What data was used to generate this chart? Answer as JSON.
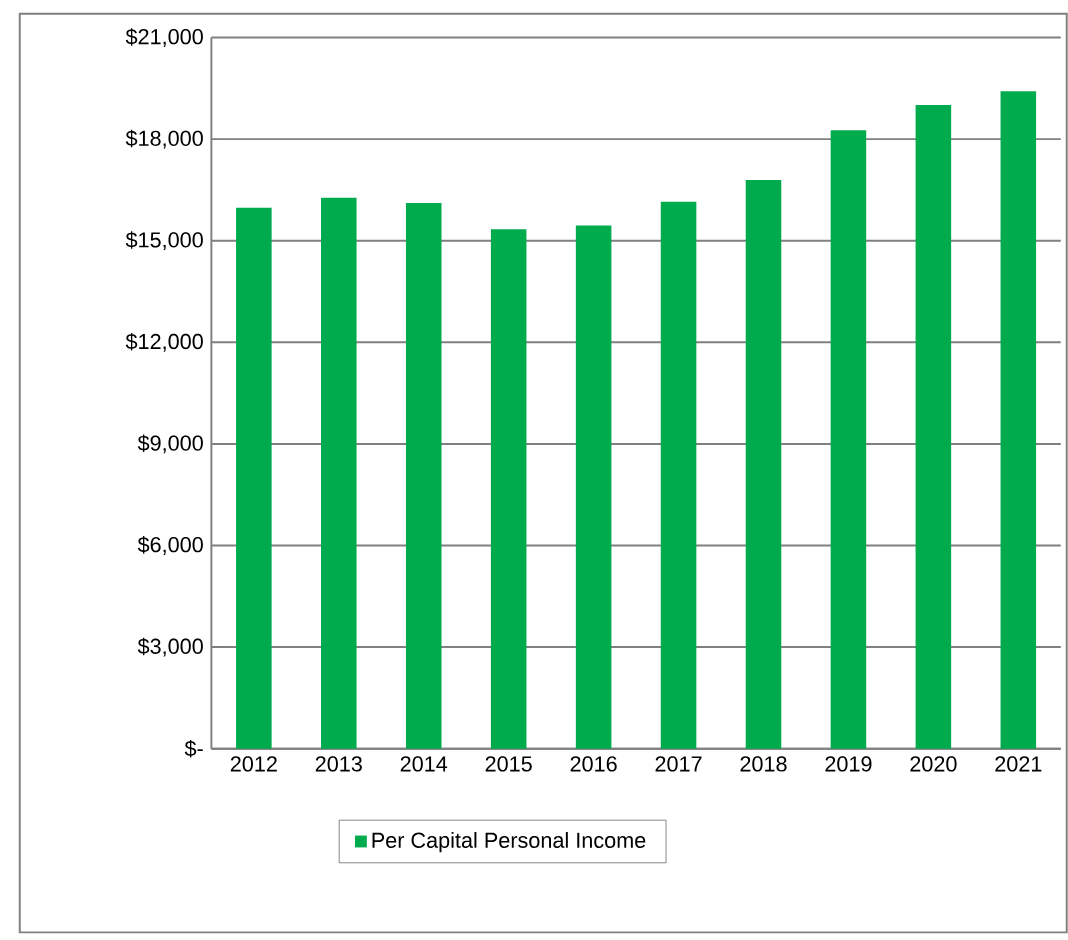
{
  "chart_data": {
    "type": "bar",
    "categories": [
      "2012",
      "2013",
      "2014",
      "2015",
      "2016",
      "2017",
      "2018",
      "2019",
      "2020",
      "2021"
    ],
    "series": [
      {
        "name": "Per Capital Personal Income",
        "color": "#00ab4e",
        "values": [
          15970,
          16270,
          16110,
          15340,
          15450,
          16150,
          16790,
          18260,
          19010,
          19410
        ]
      }
    ],
    "ylim": [
      0,
      21000
    ],
    "yticks": [
      {
        "value": 0,
        "label": "$-"
      },
      {
        "value": 3000,
        "label": "$3,000"
      },
      {
        "value": 6000,
        "label": "$6,000"
      },
      {
        "value": 9000,
        "label": "$9,000"
      },
      {
        "value": 12000,
        "label": "$12,000"
      },
      {
        "value": 15000,
        "label": "$15,000"
      },
      {
        "value": 18000,
        "label": "$18,000"
      },
      {
        "value": 21000,
        "label": "$21,000"
      }
    ],
    "grid": "y",
    "legend": "bottom"
  }
}
